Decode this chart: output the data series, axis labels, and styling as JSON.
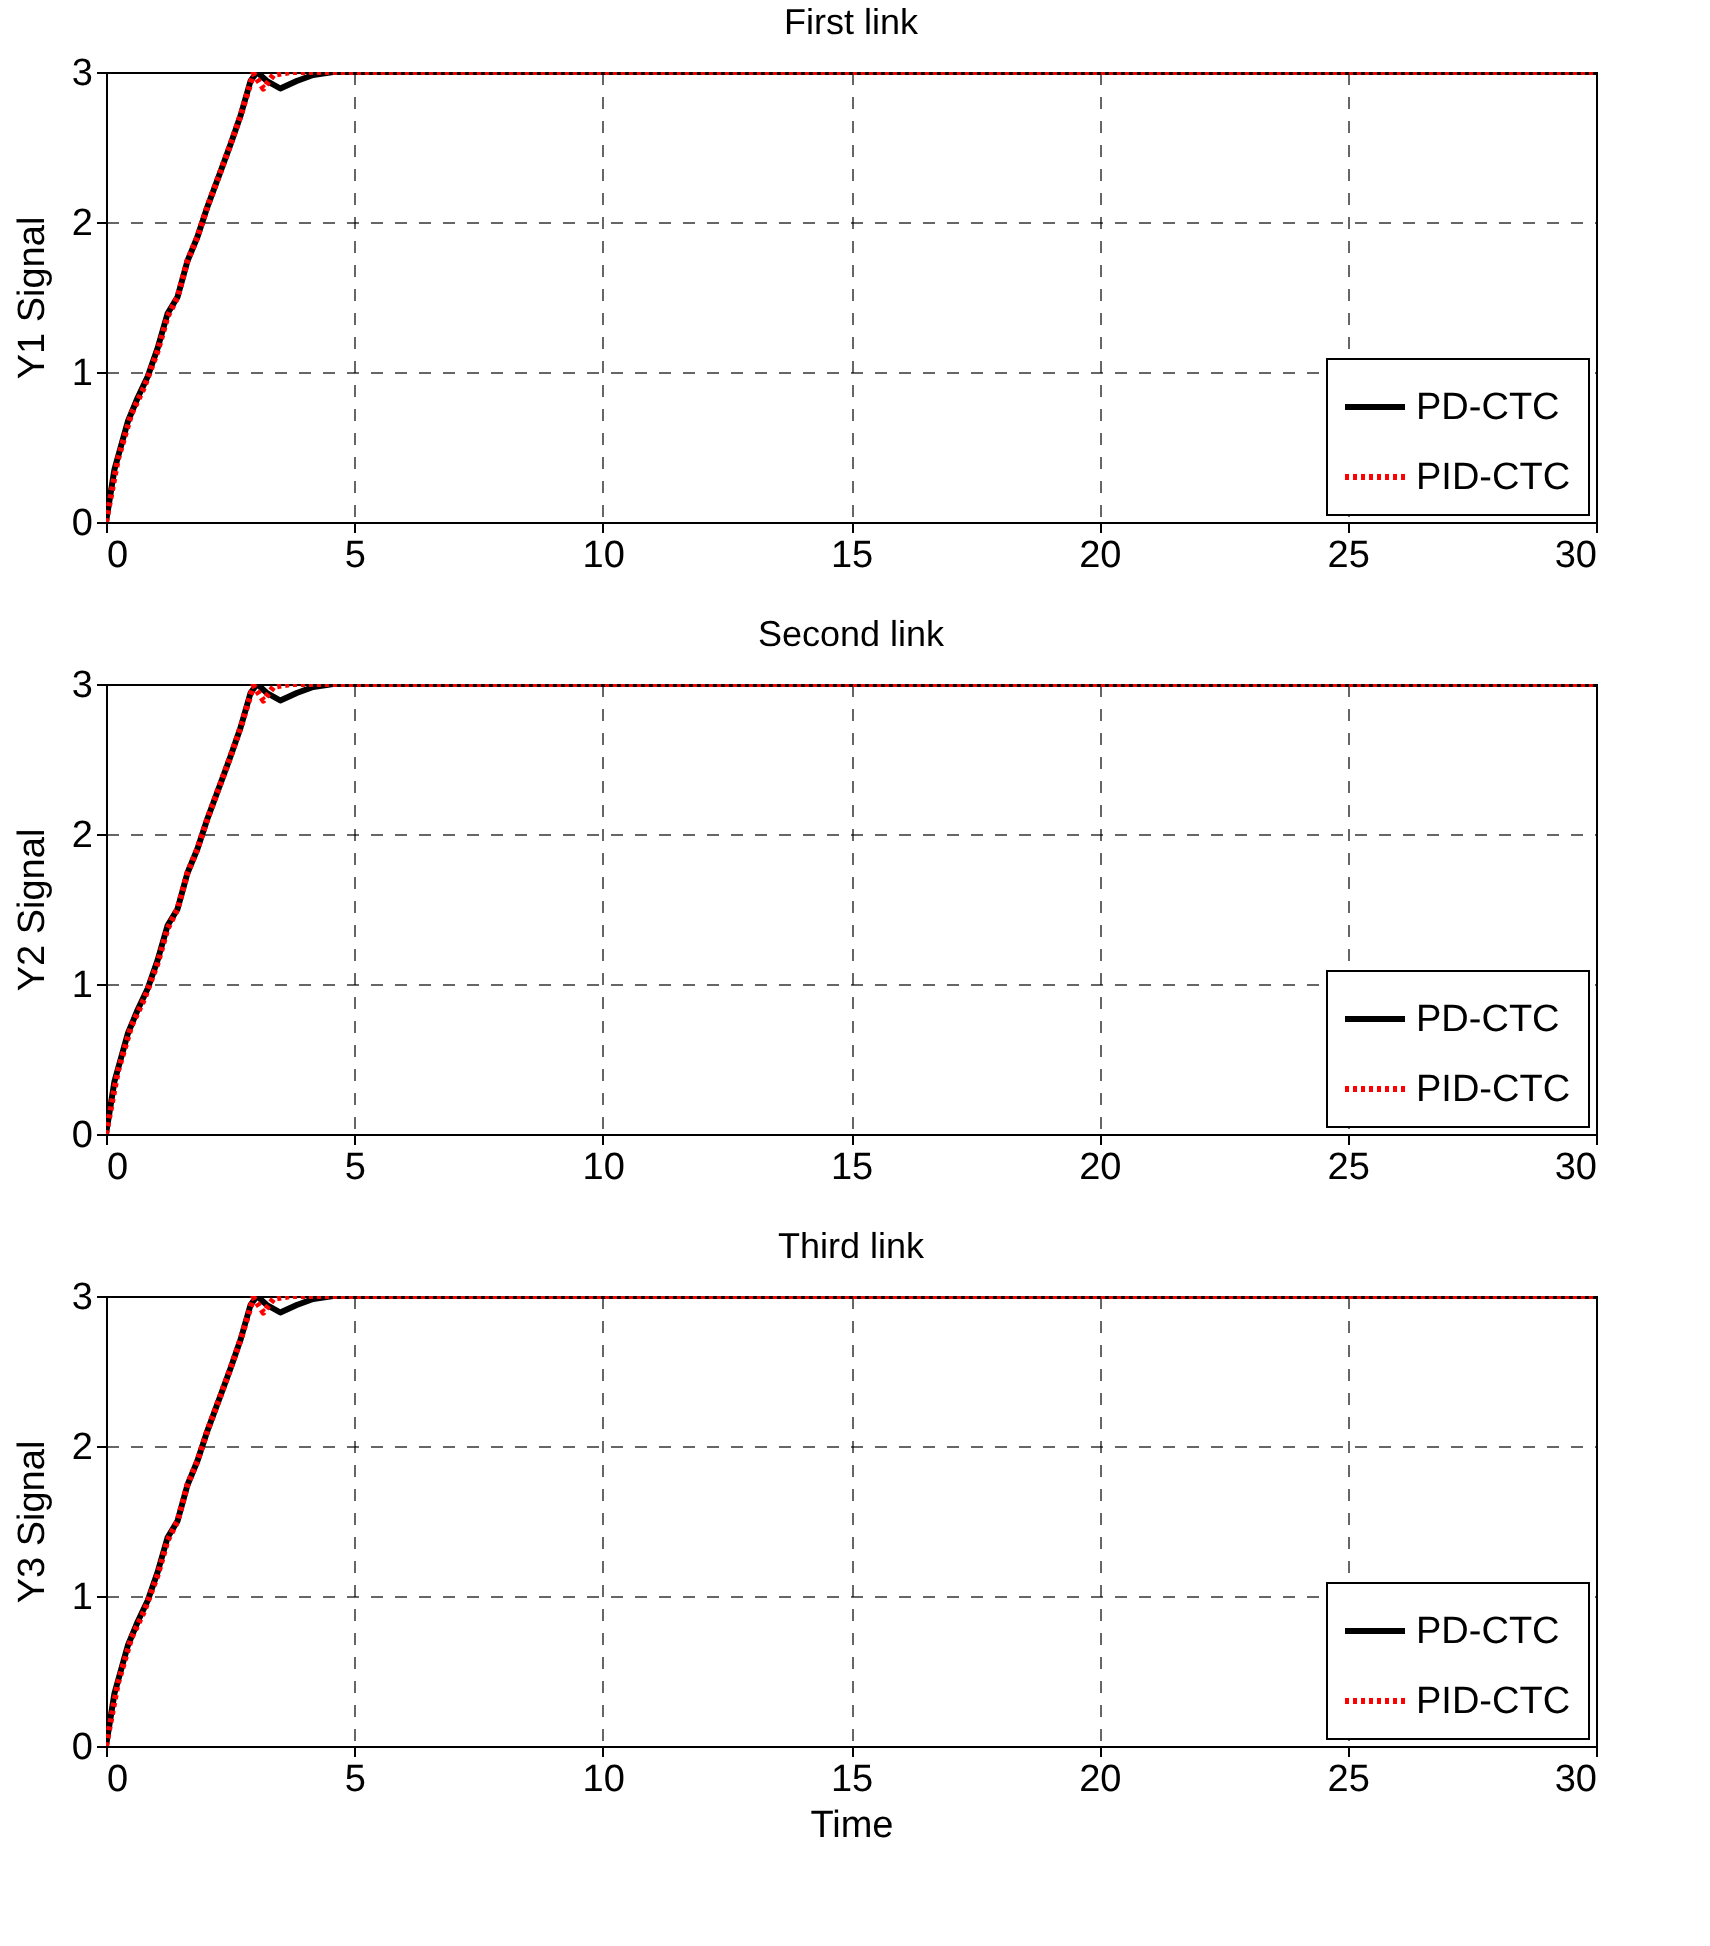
{
  "chart_data": [
    {
      "type": "line",
      "title": "First link",
      "ylabel": "Y1 Signal",
      "xlim": [
        0,
        30
      ],
      "xticks": [
        0,
        5,
        10,
        15,
        20,
        25,
        30
      ],
      "ylim": [
        0,
        3
      ],
      "yticks": [
        0,
        1,
        2,
        3
      ],
      "grid": true,
      "legend": "bottom right",
      "series": [
        {
          "name": "PD-CTC",
          "color": "#000000",
          "line_style": "solid",
          "x": [
            0,
            0.17,
            0.44,
            0.64,
            0.84,
            1.04,
            1.24,
            1.44,
            1.64,
            1.84,
            2.04,
            2.31,
            2.51,
            2.71,
            2.91,
            3.04,
            3.24,
            3.51,
            3.84,
            4.17,
            4.57,
            30
          ],
          "values": [
            0,
            0.35,
            0.67,
            0.83,
            0.97,
            1.16,
            1.39,
            1.5,
            1.74,
            1.9,
            2.1,
            2.34,
            2.52,
            2.71,
            2.94,
            3,
            2.94,
            2.89,
            2.94,
            2.98,
            3,
            3
          ]
        },
        {
          "name": "PID-CTC",
          "color": "#ff0000",
          "line_style": "dotted",
          "x": [
            0,
            0.24,
            0.51,
            0.77,
            1.04,
            1.24,
            1.44,
            1.64,
            1.84,
            2.04,
            2.31,
            2.51,
            2.71,
            2.97,
            3.17,
            3.37,
            3.71,
            30
          ],
          "values": [
            0,
            0.42,
            0.72,
            0.9,
            1.14,
            1.37,
            1.5,
            1.74,
            1.9,
            2.1,
            2.34,
            2.52,
            2.71,
            2.99,
            2.89,
            2.98,
            3,
            3
          ]
        }
      ]
    },
    {
      "type": "line",
      "title": "Second link",
      "ylabel": "Y2 Signal",
      "xlim": [
        0,
        30
      ],
      "xticks": [
        0,
        5,
        10,
        15,
        20,
        25,
        30
      ],
      "ylim": [
        0,
        3
      ],
      "yticks": [
        0,
        1,
        2,
        3
      ],
      "grid": true,
      "legend": "bottom right",
      "series": [
        {
          "name": "PD-CTC",
          "color": "#000000",
          "line_style": "solid",
          "x": [
            0,
            0.17,
            0.44,
            0.64,
            0.84,
            1.04,
            1.24,
            1.44,
            1.64,
            1.84,
            2.04,
            2.31,
            2.51,
            2.71,
            2.91,
            3.04,
            3.24,
            3.51,
            3.84,
            4.17,
            4.57,
            30
          ],
          "values": [
            0,
            0.35,
            0.67,
            0.83,
            0.97,
            1.16,
            1.39,
            1.5,
            1.74,
            1.9,
            2.1,
            2.34,
            2.52,
            2.71,
            2.94,
            3,
            2.94,
            2.89,
            2.94,
            2.98,
            3,
            3
          ]
        },
        {
          "name": "PID-CTC",
          "color": "#ff0000",
          "line_style": "dotted",
          "x": [
            0,
            0.24,
            0.51,
            0.77,
            1.04,
            1.24,
            1.44,
            1.64,
            1.84,
            2.04,
            2.31,
            2.51,
            2.71,
            2.97,
            3.17,
            3.37,
            3.71,
            30
          ],
          "values": [
            0,
            0.42,
            0.72,
            0.9,
            1.14,
            1.37,
            1.5,
            1.74,
            1.9,
            2.1,
            2.34,
            2.52,
            2.71,
            2.99,
            2.89,
            2.98,
            3,
            3
          ]
        }
      ]
    },
    {
      "type": "line",
      "title": "Third link",
      "xlabel": "Time",
      "ylabel": "Y3 Signal",
      "xlim": [
        0,
        30
      ],
      "xticks": [
        0,
        5,
        10,
        15,
        20,
        25,
        30
      ],
      "ylim": [
        0,
        3
      ],
      "yticks": [
        0,
        1,
        2,
        3
      ],
      "grid": true,
      "legend": "bottom right",
      "series": [
        {
          "name": "PD-CTC",
          "color": "#000000",
          "line_style": "solid",
          "x": [
            0,
            0.17,
            0.44,
            0.64,
            0.84,
            1.04,
            1.24,
            1.44,
            1.64,
            1.84,
            2.04,
            2.31,
            2.51,
            2.71,
            2.91,
            3.04,
            3.24,
            3.51,
            3.84,
            4.17,
            4.57,
            30
          ],
          "values": [
            0,
            0.35,
            0.67,
            0.83,
            0.97,
            1.16,
            1.39,
            1.5,
            1.74,
            1.9,
            2.1,
            2.34,
            2.52,
            2.71,
            2.94,
            3,
            2.94,
            2.89,
            2.94,
            2.98,
            3,
            3
          ]
        },
        {
          "name": "PID-CTC",
          "color": "#ff0000",
          "line_style": "dotted",
          "x": [
            0,
            0.24,
            0.51,
            0.77,
            1.04,
            1.24,
            1.44,
            1.64,
            1.84,
            2.04,
            2.31,
            2.51,
            2.71,
            2.97,
            3.17,
            3.37,
            3.71,
            30
          ],
          "values": [
            0,
            0.42,
            0.72,
            0.9,
            1.14,
            1.37,
            1.5,
            1.74,
            1.9,
            2.1,
            2.34,
            2.52,
            2.71,
            2.99,
            2.89,
            2.98,
            3,
            3
          ]
        }
      ]
    }
  ]
}
